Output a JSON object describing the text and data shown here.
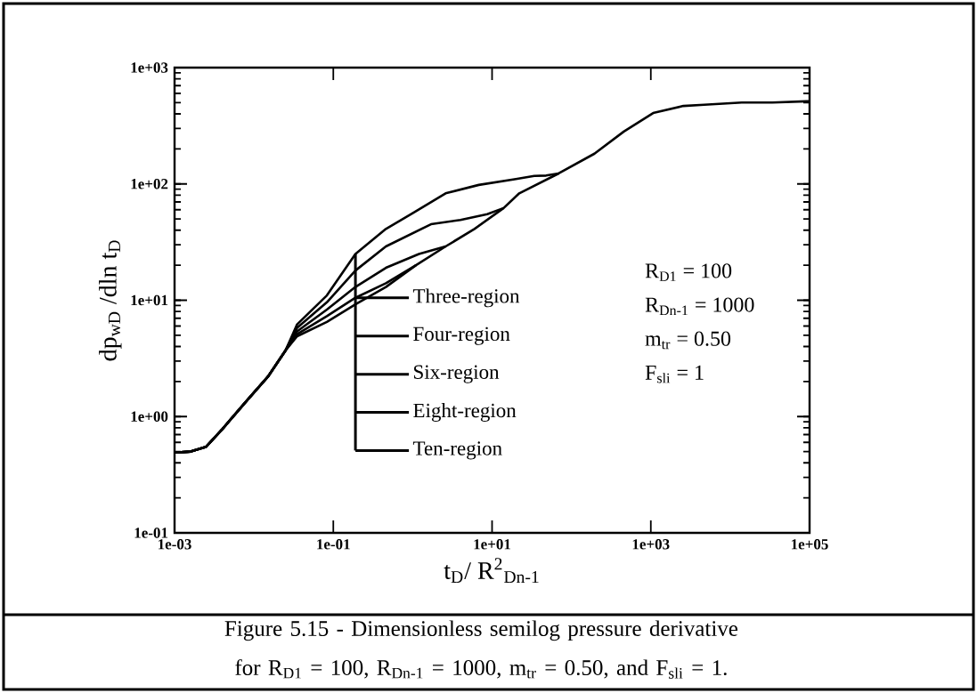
{
  "chart_data": {
    "type": "line",
    "xlabel": "t$_{D}$/ R$^{2}$$_{Dn-1}$",
    "ylabel": "dp$_{wD}$ /dln t$_{D}$",
    "log": "xy",
    "xlim": [
      0.001,
      100000
    ],
    "ylim": [
      0.1,
      1000
    ],
    "xticks": [
      {
        "value": 0.001,
        "label": "1e-03"
      },
      {
        "value": 0.1,
        "label": "1e-01"
      },
      {
        "value": 10,
        "label": "1e+01"
      },
      {
        "value": 1000,
        "label": "1e+03"
      },
      {
        "value": 100000,
        "label": "1e+05"
      }
    ],
    "yticks": [
      {
        "value": 0.1,
        "label": "1e-01"
      },
      {
        "value": 1,
        "label": "1e+00"
      },
      {
        "value": 10,
        "label": "1e+01"
      },
      {
        "value": 100,
        "label": "1e+02"
      },
      {
        "value": 1000,
        "label": "1e+03"
      }
    ],
    "series": [
      {
        "color": "#000000",
        "x": [
          0.001,
          0.0016,
          0.0025,
          0.004,
          0.008,
          0.015,
          0.025,
          0.035,
          0.083,
          0.19,
          0.46,
          1.0,
          2.6,
          6.8,
          20,
          34,
          48,
          69
        ],
        "values": [
          0.49,
          0.5,
          0.55,
          0.78,
          1.35,
          2.2,
          3.7,
          6.2,
          11,
          25,
          41,
          56,
          83,
          98,
          110,
          117,
          118,
          123
        ]
      },
      {
        "color": "#000000",
        "x": [
          0.001,
          0.0016,
          0.0025,
          0.004,
          0.008,
          0.015,
          0.025,
          0.035,
          0.083,
          0.19,
          0.46,
          1.7,
          4,
          8.7,
          14
        ],
        "values": [
          0.49,
          0.5,
          0.55,
          0.78,
          1.35,
          2.2,
          3.7,
          5.8,
          9.6,
          18,
          29,
          45,
          49,
          55,
          62
        ]
      },
      {
        "color": "#000000",
        "x": [
          0.001,
          0.0016,
          0.0025,
          0.004,
          0.008,
          0.015,
          0.025,
          0.035,
          0.083,
          0.19,
          0.46,
          1.2,
          2.6
        ],
        "values": [
          0.49,
          0.5,
          0.55,
          0.78,
          1.35,
          2.2,
          3.7,
          5.4,
          8.3,
          13,
          19,
          25,
          29
        ]
      },
      {
        "color": "#000000",
        "x": [
          0.001,
          0.0016,
          0.0025,
          0.004,
          0.008,
          0.015,
          0.025,
          0.035,
          0.083,
          0.19,
          0.46,
          1.1
        ],
        "values": [
          0.49,
          0.5,
          0.55,
          0.78,
          1.35,
          2.2,
          3.7,
          5.1,
          7.3,
          10.5,
          14,
          20
        ]
      },
      {
        "color": "#000000",
        "x": [
          0.001,
          0.0016,
          0.0025,
          0.004,
          0.008,
          0.015,
          0.025,
          0.035,
          0.083,
          0.19,
          0.46,
          1.1,
          2.6,
          6.0,
          14,
          22,
          69,
          195,
          457,
          1070,
          2570,
          4700,
          14000,
          34000,
          91000,
          100000
        ],
        "values": [
          0.49,
          0.5,
          0.55,
          0.78,
          1.35,
          2.2,
          3.7,
          4.9,
          6.5,
          9.2,
          13,
          20,
          29,
          41,
          62,
          83,
          123,
          182,
          282,
          407,
          468,
          479,
          501,
          501,
          513,
          513
        ]
      }
    ],
    "annotations": [
      "Three-region",
      "Four-region",
      "Six-region",
      "Eight-region",
      "Ten-region",
      "R$_{D1}$ = 100",
      "R$_{Dn-1}$ = 1000",
      "m$_{tr}$ = 0.50",
      "F$_{sli}$ = 1",
      "Figure 5.15 - Dimensionless semilog pressure derivative for R$_{D1}$ = 100, R$_{Dn-1}$ = 1000, m$_{tr}$ = 0.50, and F$_{sli}$ = 1."
    ]
  }
}
